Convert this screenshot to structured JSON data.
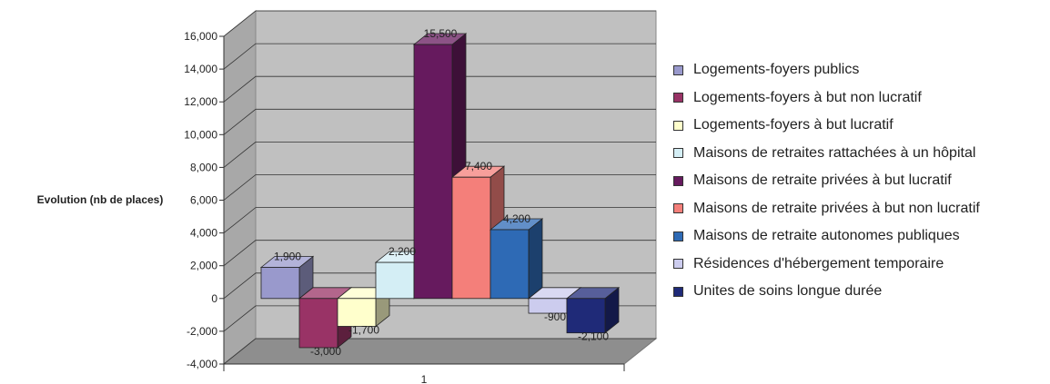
{
  "chart_data": {
    "type": "bar",
    "title": "",
    "ylabel": "Evolution (nb de places)",
    "xlabel": "",
    "categories": [
      "1"
    ],
    "ylim": [
      -4000,
      16000
    ],
    "y_ticks": [
      -4000,
      -2000,
      0,
      2000,
      4000,
      6000,
      8000,
      10000,
      12000,
      14000,
      16000
    ],
    "y_tick_labels": [
      "-4,000",
      "-2,000",
      "0",
      "2,000",
      "4,000",
      "6,000",
      "8,000",
      "10,000",
      "12,000",
      "14,000",
      "16,000"
    ],
    "grid": true,
    "legend_position": "right",
    "style": "3d-clustered-column",
    "series": [
      {
        "name": "Logements-foyers publics",
        "values": [
          1900
        ],
        "label": "1,900",
        "color": "#9999cc"
      },
      {
        "name": "Logements-foyers à but non lucratif",
        "values": [
          -3000
        ],
        "label": "-3,000",
        "color": "#993366"
      },
      {
        "name": "Logements-foyers à but lucratif",
        "values": [
          -1700
        ],
        "label": "-1,700",
        "color": "#ffffcc"
      },
      {
        "name": "Maisons de retraites rattachées à un hôpital",
        "values": [
          2200
        ],
        "label": "2,200",
        "color": "#d4eef5"
      },
      {
        "name": "Maisons de retraite privées à but lucratif",
        "values": [
          15500
        ],
        "label": "15,500",
        "color": "#661a5e"
      },
      {
        "name": "Maisons de retraite privées à but non lucratif",
        "values": [
          7400
        ],
        "label": "7,400",
        "color": "#f47f7a"
      },
      {
        "name": "Maisons de retraite autonomes publiques",
        "values": [
          4200
        ],
        "label": "4,200",
        "color": "#2e6ab5"
      },
      {
        "name": "Résidences d'hébergement temporaire",
        "values": [
          -900
        ],
        "label": "-900",
        "color": "#ccccee"
      },
      {
        "name": "Unites de soins longue durée",
        "values": [
          -2100
        ],
        "label": "-2,100",
        "color": "#1f2a78"
      }
    ]
  }
}
